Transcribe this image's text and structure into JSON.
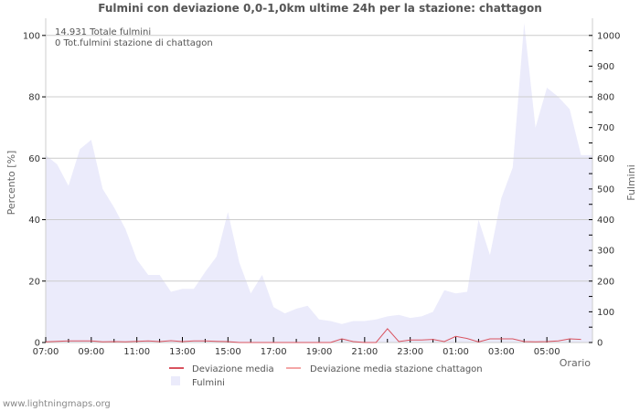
{
  "title": "Fulmini con deviazione 0,0-1,0km ultime 24h per la stazione: chattagon",
  "info_lines": [
    "14.931 Totale fulmini",
    "0 Tot.fulmini stazione di chattagon"
  ],
  "footer": "www.lightningmaps.org",
  "colors": {
    "fulmini_fill": "#ebebfb",
    "deviazione_media": "#d9535f",
    "deviazione_media_stazione": "#f4a6a6",
    "grid": "#cccccc",
    "axis": "#cccccc"
  },
  "legend": [
    {
      "label": "Deviazione media",
      "type": "line",
      "color": "#d9535f"
    },
    {
      "label": "Deviazione media stazione chattagon",
      "type": "line",
      "color": "#f4a6a6"
    },
    {
      "label": "Fulmini",
      "type": "box",
      "color": "#ebebfb"
    }
  ],
  "chart_data": {
    "type": "area",
    "title": "Fulmini con deviazione 0,0-1,0km ultime 24h per la stazione: chattagon",
    "xlabel": "Orario",
    "ylabel": "Percento   [%]",
    "ylabel_right": "Fulmini",
    "ylim": [
      0,
      105
    ],
    "ylim_right": [
      0,
      1050
    ],
    "yticks": [
      0,
      20,
      40,
      60,
      80,
      100
    ],
    "yticks_right": [
      0,
      100,
      200,
      300,
      400,
      500,
      600,
      700,
      800,
      900,
      1000
    ],
    "xtick_labels": [
      "07:00",
      "09:00",
      "11:00",
      "13:00",
      "15:00",
      "17:00",
      "19:00",
      "21:00",
      "23:00",
      "01:00",
      "03:00",
      "05:00"
    ],
    "grid": true,
    "x": [
      "07:00",
      "07:30",
      "08:00",
      "08:30",
      "09:00",
      "09:30",
      "10:00",
      "10:30",
      "11:00",
      "11:30",
      "12:00",
      "12:30",
      "13:00",
      "13:30",
      "14:00",
      "14:30",
      "15:00",
      "15:30",
      "16:00",
      "16:30",
      "17:00",
      "17:30",
      "18:00",
      "18:30",
      "19:00",
      "19:30",
      "20:00",
      "20:30",
      "21:00",
      "21:30",
      "22:00",
      "22:30",
      "23:00",
      "23:30",
      "00:00",
      "00:30",
      "01:00",
      "01:30",
      "02:00",
      "02:30",
      "03:00",
      "03:30",
      "04:00",
      "04:30",
      "05:00",
      "05:30",
      "06:00",
      "06:30"
    ],
    "series": [
      {
        "name": "Fulmini",
        "axis": "right",
        "type": "area",
        "values": [
          610,
          580,
          510,
          630,
          660,
          500,
          440,
          370,
          270,
          220,
          220,
          165,
          175,
          175,
          230,
          280,
          425,
          260,
          160,
          220,
          115,
          95,
          110,
          120,
          75,
          70,
          60,
          70,
          70,
          75,
          85,
          90,
          80,
          85,
          100,
          170,
          160,
          165,
          400,
          285,
          470,
          570,
          1040,
          700,
          830,
          800,
          760,
          610
        ]
      },
      {
        "name": "Deviazione media",
        "axis": "left",
        "type": "line",
        "values": [
          0.2,
          0.4,
          0.5,
          0.5,
          0.5,
          0.2,
          0.3,
          0.2,
          0.4,
          0.5,
          0.3,
          0.6,
          0.3,
          0.5,
          0.5,
          0.4,
          0.3,
          0,
          0,
          0,
          0,
          0,
          0,
          0,
          0,
          0,
          1.2,
          0.3,
          0,
          0,
          4.5,
          0.3,
          0.8,
          0.8,
          1.0,
          0.3,
          2.0,
          1.3,
          0.2,
          1.2,
          1.2,
          1.2,
          0.3,
          0.2,
          0.3,
          0.5,
          1.2,
          1.0
        ]
      },
      {
        "name": "Deviazione media stazione chattagon",
        "axis": "left",
        "type": "line",
        "values": []
      }
    ]
  }
}
